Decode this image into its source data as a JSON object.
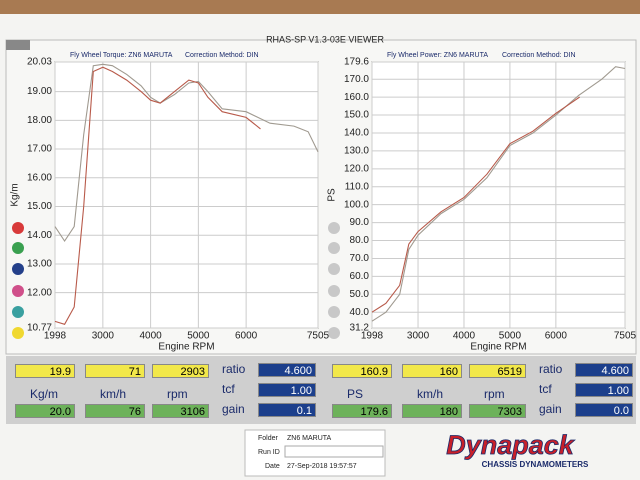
{
  "header": {
    "title": "RHAS-SP V1.3-03E VIEWER"
  },
  "chart_data": [
    {
      "type": "line",
      "title": "Fly Wheel Torque: ZN6 MARUTA",
      "subtitle": "Correction Method: DIN",
      "xlabel": "Engine RPM",
      "ylabel": "Kg/m",
      "grid": true,
      "xlim": [
        1998,
        7505
      ],
      "xticks": [
        1998,
        3000,
        4000,
        5000,
        6000,
        7505
      ],
      "ylim": [
        10.77,
        20.03
      ],
      "yticks": [
        10.77,
        {
          "value": 12,
          "label": "12.00"
        },
        {
          "value": 13,
          "label": "13.00"
        },
        {
          "value": 14,
          "label": "14.00"
        },
        {
          "value": 15,
          "label": "15.00"
        },
        {
          "value": 16,
          "label": "16.00"
        },
        {
          "value": 17,
          "label": "17.00"
        },
        {
          "value": 18,
          "label": "18.00"
        },
        {
          "value": 19,
          "label": "19.00"
        },
        20.03
      ],
      "series": [
        {
          "color": "#a09a90",
          "x": [
            1998,
            2200,
            2400,
            2600,
            2800,
            3000,
            3200,
            3500,
            3800,
            4000,
            4200,
            4500,
            4800,
            5000,
            5200,
            5500,
            6000,
            6500,
            7000,
            7300,
            7505
          ],
          "values": [
            14.3,
            13.8,
            14.3,
            17.5,
            19.9,
            19.95,
            19.9,
            19.6,
            19.2,
            18.8,
            18.6,
            18.9,
            19.3,
            19.35,
            19.0,
            18.4,
            18.3,
            17.9,
            17.8,
            17.6,
            16.9
          ]
        },
        {
          "color": "#b85a4a",
          "x": [
            1998,
            2200,
            2400,
            2600,
            2800,
            3000,
            3200,
            3500,
            3800,
            4000,
            4200,
            4500,
            4800,
            5000,
            5200,
            5500,
            6000,
            6300
          ],
          "values": [
            11.0,
            10.9,
            11.5,
            15.0,
            19.7,
            19.85,
            19.7,
            19.4,
            19.0,
            18.7,
            18.6,
            19.0,
            19.4,
            19.3,
            18.8,
            18.3,
            18.1,
            17.7
          ]
        }
      ]
    },
    {
      "type": "line",
      "title": "Fly Wheel Power: ZN6 MARUTA",
      "subtitle": "Correction Method: DIN",
      "xlabel": "Engine RPM",
      "ylabel": "PS",
      "grid": true,
      "xlim": [
        1998,
        7505
      ],
      "xticks": [
        1998,
        3000,
        4000,
        5000,
        6000,
        7505
      ],
      "ylim": [
        31.2,
        179.6
      ],
      "yticks": [
        31.2,
        {
          "value": 40,
          "label": "40.0"
        },
        {
          "value": 50,
          "label": "50.0"
        },
        {
          "value": 60,
          "label": "60.0"
        },
        {
          "value": 70,
          "label": "70.0"
        },
        {
          "value": 80,
          "label": "80.0"
        },
        {
          "value": 90,
          "label": "90.0"
        },
        {
          "value": 100,
          "label": "100.0"
        },
        {
          "value": 110,
          "label": "110.0"
        },
        {
          "value": 120,
          "label": "120.0"
        },
        {
          "value": 130,
          "label": "130.0"
        },
        {
          "value": 140,
          "label": "140.0"
        },
        {
          "value": 150,
          "label": "150.0"
        },
        {
          "value": 160,
          "label": "160.0"
        },
        {
          "value": 170,
          "label": "170.0"
        },
        179.6
      ],
      "series": [
        {
          "color": "#a09a90",
          "x": [
            1998,
            2300,
            2600,
            2800,
            3000,
            3500,
            4000,
            4500,
            5000,
            5500,
            6000,
            6500,
            7000,
            7300,
            7505
          ],
          "values": [
            35,
            40,
            50,
            75,
            83,
            95,
            103,
            115,
            133,
            140,
            150,
            161,
            170,
            177,
            176
          ]
        },
        {
          "color": "#b85a4a",
          "x": [
            1998,
            2300,
            2600,
            2800,
            3000,
            3500,
            4000,
            4500,
            5000,
            5500,
            6000,
            6519
          ],
          "values": [
            40,
            45,
            55,
            78,
            85,
            96,
            104,
            117,
            134,
            141,
            151,
            160
          ]
        }
      ]
    }
  ],
  "readouts": [
    {
      "top": [
        "19.9",
        "71",
        "2903"
      ],
      "units": [
        "Kg/m",
        "km/h",
        "rpm"
      ],
      "bottom": [
        "20.0",
        "76",
        "3106"
      ],
      "params": [
        "ratio",
        "tcf",
        "gain"
      ],
      "param_values": [
        "4.600",
        "1.00",
        "0.1"
      ]
    },
    {
      "top": [
        "160.9",
        "160",
        "6519"
      ],
      "units": [
        "PS",
        "km/h",
        "rpm"
      ],
      "bottom": [
        "179.6",
        "180",
        "7303"
      ],
      "params": [
        "ratio",
        "tcf",
        "gain"
      ],
      "param_values": [
        "4.600",
        "1.00",
        "0.0"
      ]
    }
  ],
  "footer": {
    "folder_label": "Folder",
    "folder": "ZN6 MARUTA",
    "run_label": "Run ID",
    "date_label": "Date",
    "date": "27-Sep-2018  19:57:57",
    "logo": "Dynapack",
    "logo_sub": "CHASSIS  DYNAMOMETERS"
  }
}
